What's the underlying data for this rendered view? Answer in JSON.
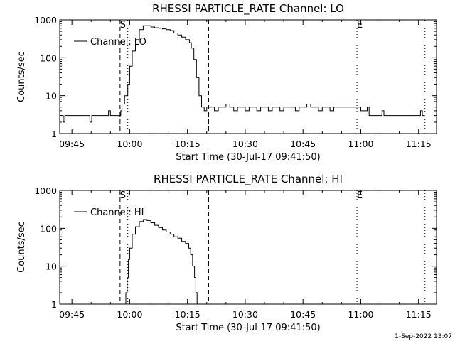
{
  "footer": {
    "date_stamp": "1-Sep-2022 13:07"
  },
  "chart_data": [
    {
      "type": "line",
      "title": "RHESSI PARTICLE_RATE Channel: LO",
      "xlabel": "Start Time (30-Jul-17 09:41:50)",
      "ylabel": "Counts/sec",
      "y_scale": "log",
      "ylim": [
        1,
        1000
      ],
      "y_ticks": [
        "1",
        "10",
        "100",
        "1000"
      ],
      "xlim": [
        "09:41:50",
        "11:19:40"
      ],
      "x_ticks": [
        "09:45",
        "10:00",
        "10:15",
        "10:30",
        "10:45",
        "11:00",
        "11:15"
      ],
      "legend": {
        "placement": "top-left",
        "entries": [
          "Channel: LO"
        ]
      },
      "markers": [
        {
          "label": "S",
          "time": "09:57:30",
          "style": "dashed"
        },
        {
          "label": "",
          "time": "09:59:30",
          "style": "dotted"
        },
        {
          "label": "",
          "time": "10:20:30",
          "style": "dashed"
        },
        {
          "label": "E",
          "time": "10:59:00",
          "style": "dotted"
        },
        {
          "label": "",
          "time": "11:16:40",
          "style": "dotted"
        }
      ],
      "series": [
        {
          "name": "Channel: LO",
          "points": [
            [
              "09:42:20",
              3
            ],
            [
              "09:42:45",
              2
            ],
            [
              "09:43:10",
              3
            ],
            [
              "09:44:00",
              3
            ],
            [
              "09:45:00",
              3
            ],
            [
              "09:46:00",
              3
            ],
            [
              "09:47:00",
              3
            ],
            [
              "09:48:00",
              3
            ],
            [
              "09:49:00",
              3
            ],
            [
              "09:49:40",
              2
            ],
            [
              "09:50:10",
              3
            ],
            [
              "09:51:00",
              3
            ],
            [
              "09:52:00",
              3
            ],
            [
              "09:53:00",
              3
            ],
            [
              "09:54:00",
              3
            ],
            [
              "09:54:30",
              4
            ],
            [
              "09:55:00",
              3
            ],
            [
              "09:56:00",
              3
            ],
            [
              "09:57:00",
              3
            ],
            [
              "09:57:40",
              4
            ],
            [
              "09:58:00",
              6
            ],
            [
              "09:58:40",
              10
            ],
            [
              "09:59:30",
              20
            ],
            [
              "10:00:00",
              60
            ],
            [
              "10:00:40",
              150
            ],
            [
              "10:01:30",
              300
            ],
            [
              "10:02:30",
              550
            ],
            [
              "10:03:30",
              700
            ],
            [
              "10:04:30",
              700
            ],
            [
              "10:05:30",
              650
            ],
            [
              "10:06:30",
              620
            ],
            [
              "10:07:30",
              600
            ],
            [
              "10:08:30",
              580
            ],
            [
              "10:09:30",
              550
            ],
            [
              "10:10:30",
              520
            ],
            [
              "10:11:30",
              450
            ],
            [
              "10:12:30",
              400
            ],
            [
              "10:13:30",
              350
            ],
            [
              "10:14:30",
              300
            ],
            [
              "10:15:30",
              250
            ],
            [
              "10:16:00",
              180
            ],
            [
              "10:16:40",
              90
            ],
            [
              "10:17:20",
              30
            ],
            [
              "10:18:00",
              10
            ],
            [
              "10:18:40",
              5
            ],
            [
              "10:19:20",
              4
            ],
            [
              "10:20:00",
              5
            ],
            [
              "10:21:00",
              5
            ],
            [
              "10:22:00",
              4
            ],
            [
              "10:23:00",
              5
            ],
            [
              "10:24:00",
              5
            ],
            [
              "10:25:00",
              6
            ],
            [
              "10:26:00",
              5
            ],
            [
              "10:27:00",
              4
            ],
            [
              "10:28:00",
              5
            ],
            [
              "10:29:00",
              5
            ],
            [
              "10:30:00",
              4
            ],
            [
              "10:31:00",
              5
            ],
            [
              "10:32:00",
              5
            ],
            [
              "10:33:00",
              4
            ],
            [
              "10:34:00",
              5
            ],
            [
              "10:35:00",
              5
            ],
            [
              "10:36:00",
              4
            ],
            [
              "10:37:00",
              5
            ],
            [
              "10:38:00",
              5
            ],
            [
              "10:39:00",
              4
            ],
            [
              "10:40:00",
              5
            ],
            [
              "10:41:00",
              5
            ],
            [
              "10:42:00",
              5
            ],
            [
              "10:43:00",
              4
            ],
            [
              "10:44:00",
              5
            ],
            [
              "10:45:00",
              5
            ],
            [
              "10:46:00",
              6
            ],
            [
              "10:47:00",
              5
            ],
            [
              "10:48:00",
              5
            ],
            [
              "10:49:00",
              4
            ],
            [
              "10:50:00",
              5
            ],
            [
              "10:51:00",
              5
            ],
            [
              "10:52:00",
              4
            ],
            [
              "10:53:00",
              5
            ],
            [
              "10:54:00",
              5
            ],
            [
              "10:55:00",
              5
            ],
            [
              "10:56:00",
              5
            ],
            [
              "10:57:00",
              5
            ],
            [
              "10:58:00",
              5
            ],
            [
              "10:59:00",
              5
            ],
            [
              "11:00:00",
              4
            ],
            [
              "11:01:00",
              4
            ],
            [
              "11:01:40",
              5
            ],
            [
              "11:02:10",
              3
            ],
            [
              "11:03:00",
              3
            ],
            [
              "11:04:00",
              3
            ],
            [
              "11:05:00",
              3
            ],
            [
              "11:05:30",
              4
            ],
            [
              "11:06:00",
              3
            ],
            [
              "11:07:00",
              3
            ],
            [
              "11:08:00",
              3
            ],
            [
              "11:09:00",
              3
            ],
            [
              "11:10:00",
              3
            ],
            [
              "11:11:00",
              3
            ],
            [
              "11:12:00",
              3
            ],
            [
              "11:13:00",
              3
            ],
            [
              "11:14:00",
              3
            ],
            [
              "11:15:00",
              3
            ],
            [
              "11:15:30",
              4
            ],
            [
              "11:16:00",
              3
            ],
            [
              "11:16:40",
              3
            ]
          ]
        }
      ]
    },
    {
      "type": "line",
      "title": "RHESSI PARTICLE_RATE Channel: HI",
      "xlabel": "Start Time (30-Jul-17 09:41:50)",
      "ylabel": "Counts/sec",
      "y_scale": "log",
      "ylim": [
        1,
        1000
      ],
      "y_ticks": [
        "1",
        "10",
        "100",
        "1000"
      ],
      "xlim": [
        "09:41:50",
        "11:19:40"
      ],
      "x_ticks": [
        "09:45",
        "10:00",
        "10:15",
        "10:30",
        "10:45",
        "11:00",
        "11:15"
      ],
      "legend": {
        "placement": "top-left",
        "entries": [
          "Channel: HI"
        ]
      },
      "markers": [
        {
          "label": "S",
          "time": "09:57:30",
          "style": "dashed"
        },
        {
          "label": "",
          "time": "09:59:30",
          "style": "dotted"
        },
        {
          "label": "",
          "time": "10:20:30",
          "style": "dashed"
        },
        {
          "label": "E",
          "time": "10:59:00",
          "style": "dotted"
        },
        {
          "label": "",
          "time": "11:16:40",
          "style": "dotted"
        }
      ],
      "series": [
        {
          "name": "Channel: HI",
          "points": [
            [
              "09:58:40",
              0.9
            ],
            [
              "09:59:00",
              2
            ],
            [
              "09:59:20",
              5
            ],
            [
              "09:59:40",
              15
            ],
            [
              "10:00:00",
              30
            ],
            [
              "10:00:40",
              70
            ],
            [
              "10:01:30",
              110
            ],
            [
              "10:02:30",
              150
            ],
            [
              "10:03:30",
              170
            ],
            [
              "10:04:30",
              160
            ],
            [
              "10:05:30",
              140
            ],
            [
              "10:06:30",
              120
            ],
            [
              "10:07:30",
              105
            ],
            [
              "10:08:30",
              90
            ],
            [
              "10:09:30",
              80
            ],
            [
              "10:10:30",
              70
            ],
            [
              "10:11:30",
              60
            ],
            [
              "10:12:30",
              55
            ],
            [
              "10:13:30",
              45
            ],
            [
              "10:14:30",
              40
            ],
            [
              "10:15:20",
              30
            ],
            [
              "10:15:50",
              20
            ],
            [
              "10:16:20",
              10
            ],
            [
              "10:16:50",
              5
            ],
            [
              "10:17:10",
              2
            ],
            [
              "10:17:30",
              0.9
            ]
          ]
        }
      ]
    }
  ]
}
